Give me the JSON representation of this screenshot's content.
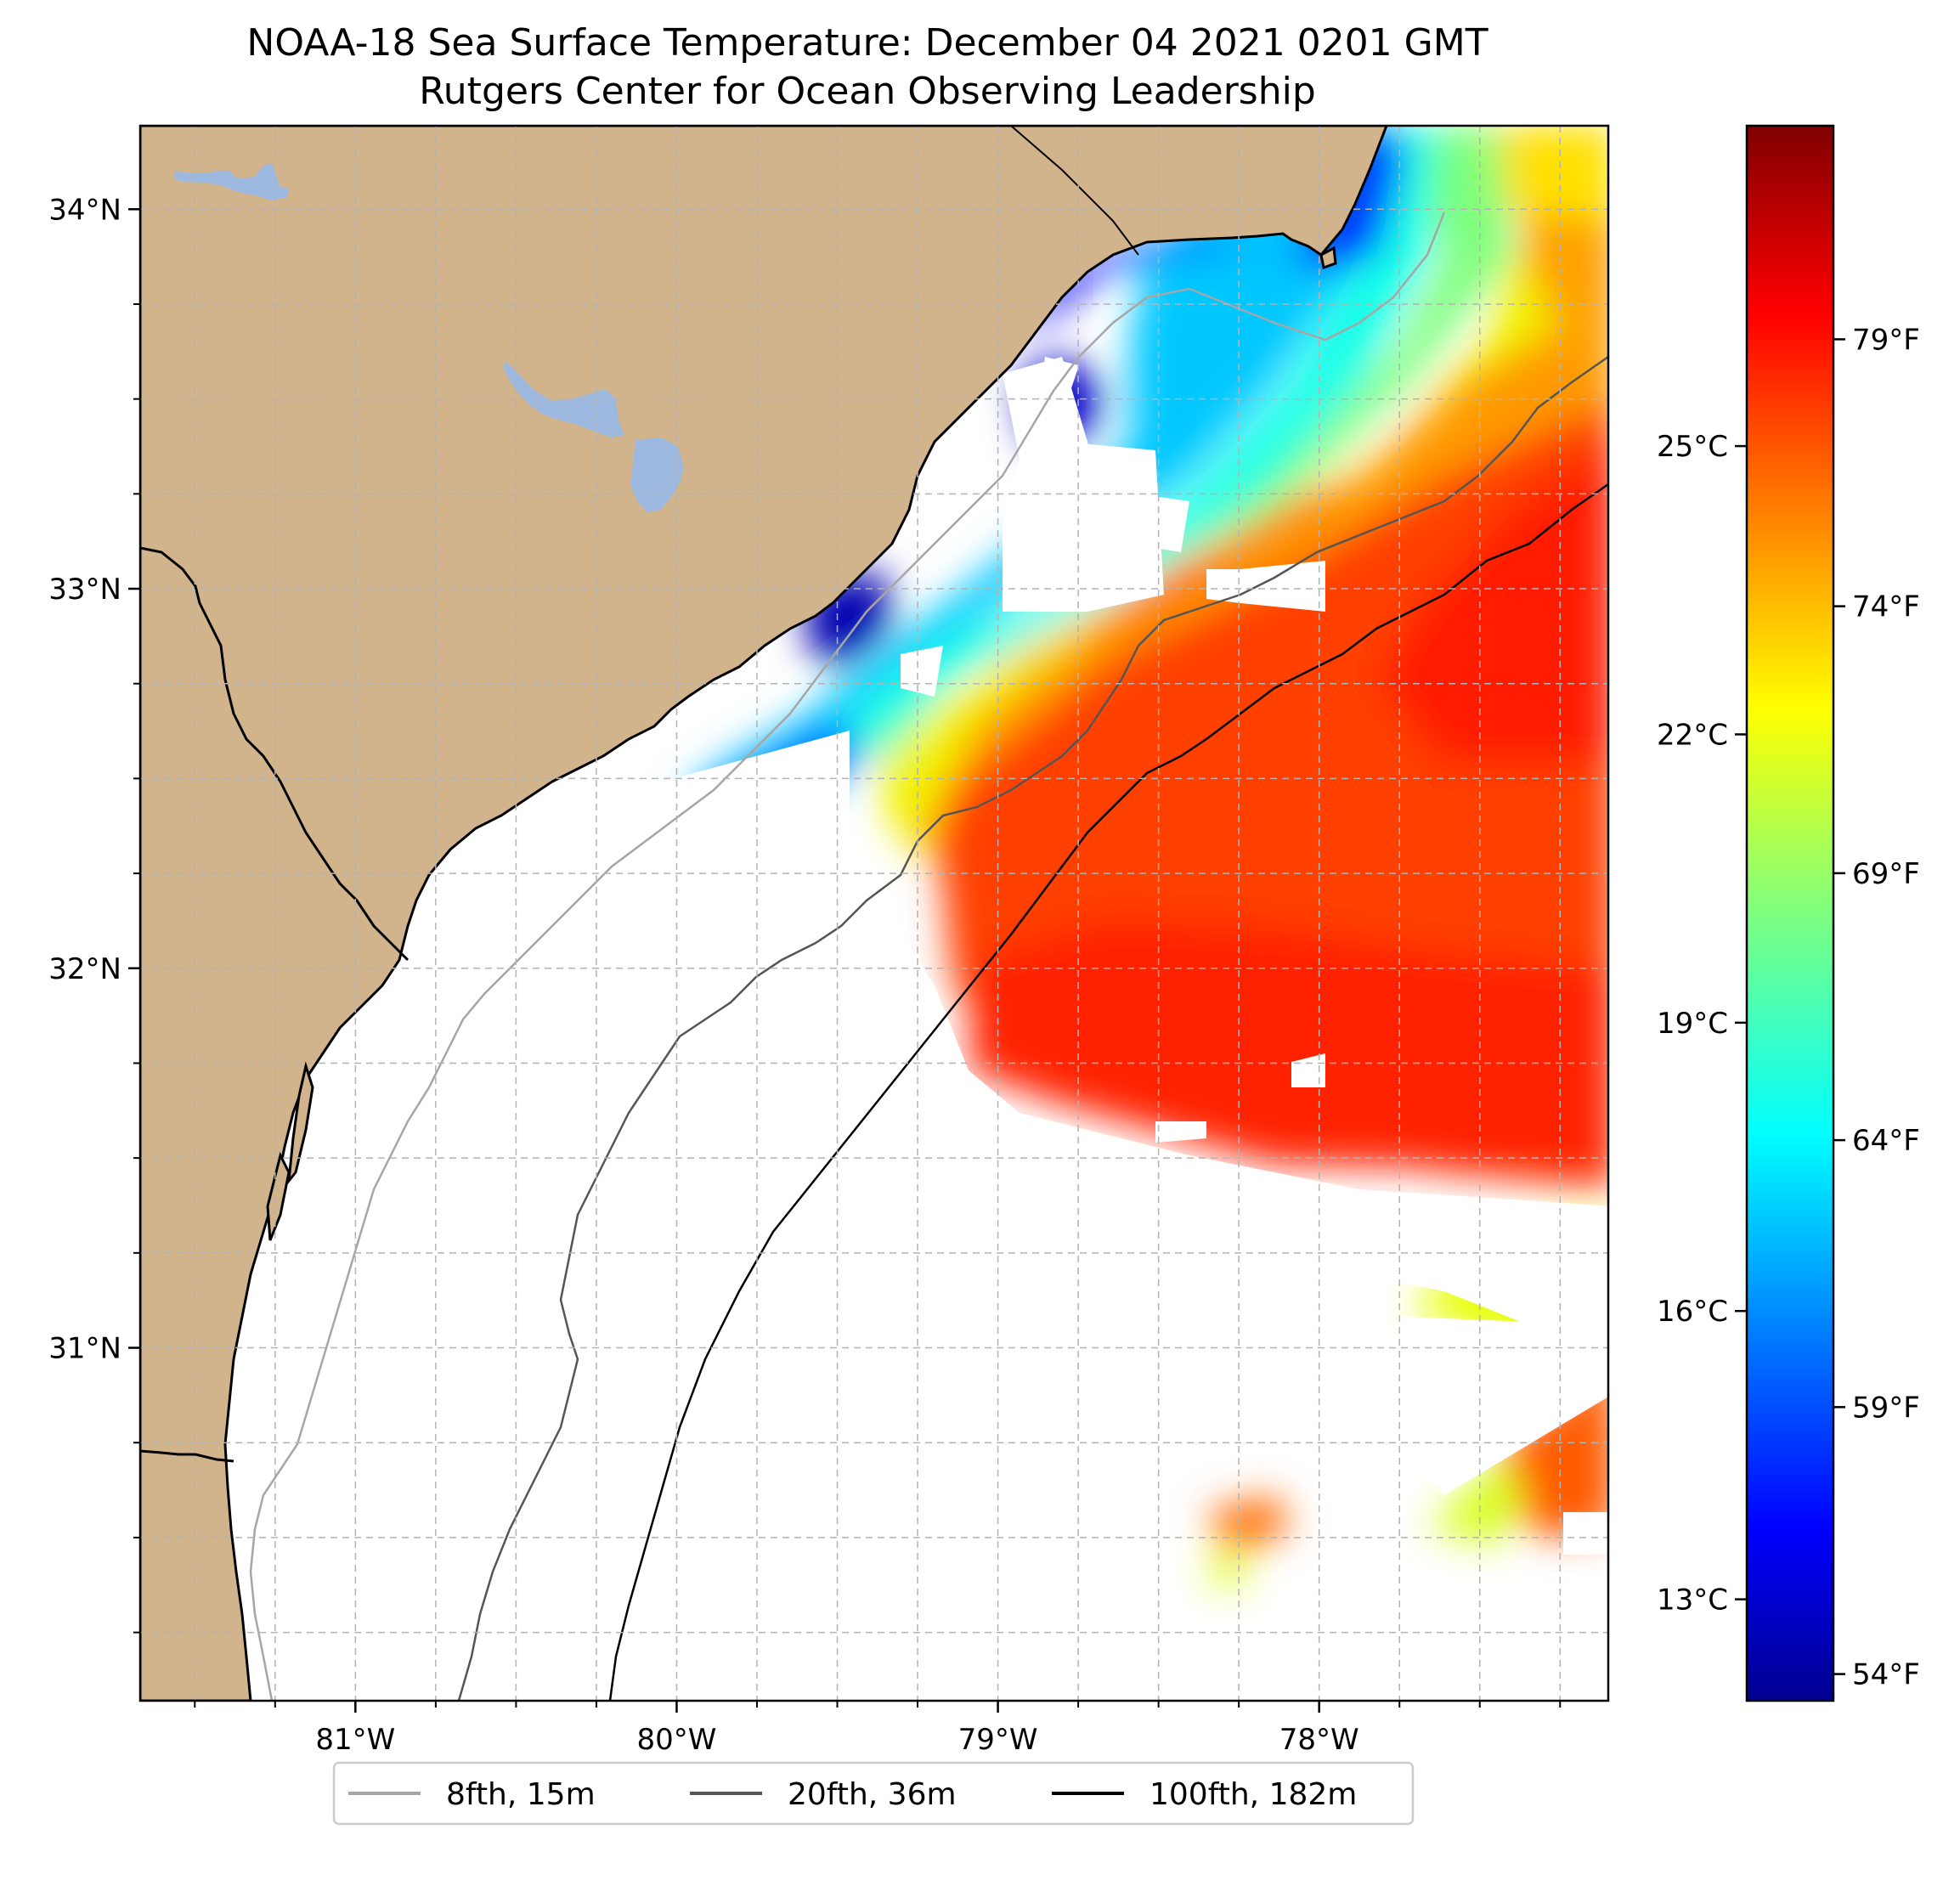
{
  "title_line1": "NOAA-18 Sea Surface Temperature: December 04 2021 0201 GMT",
  "title_line2": "Rutgers Center for Ocean Observing Leadership",
  "colors": {
    "land": "#d2b48c",
    "lakes": "#9db9e0",
    "ocean_no_data": "#ffffff",
    "grid": "#b3b3b3",
    "isobath_8fth": "#a6a6a6",
    "isobath_20fth": "#555555",
    "isobath_100fth": "#000000",
    "coastline": "#000000"
  },
  "map": {
    "lon_range": [
      -81.67,
      -77.1
    ],
    "lat_range": [
      30.07,
      34.22
    ],
    "lon_ticks": [
      {
        "value": -81,
        "label": "81°W"
      },
      {
        "value": -80,
        "label": "80°W"
      },
      {
        "value": -79,
        "label": "79°W"
      },
      {
        "value": -78,
        "label": "78°W"
      }
    ],
    "lat_ticks": [
      {
        "value": 34,
        "label": "34°N"
      },
      {
        "value": 33,
        "label": "33°N"
      },
      {
        "value": 32,
        "label": "32°N"
      },
      {
        "value": 31,
        "label": "31°N"
      }
    ],
    "minor_grid_step_deg": 0.25
  },
  "colorbar": {
    "colormap": "jet",
    "range_f": [
      53.5,
      83
    ],
    "celsius_ticks": [
      {
        "value_c": 25,
        "label": "25°C"
      },
      {
        "value_c": 22,
        "label": "22°C"
      },
      {
        "value_c": 19,
        "label": "19°C"
      },
      {
        "value_c": 16,
        "label": "16°C"
      },
      {
        "value_c": 13,
        "label": "13°C"
      }
    ],
    "fahrenheit_ticks": [
      {
        "value_f": 79,
        "label": "79°F"
      },
      {
        "value_f": 74,
        "label": "74°F"
      },
      {
        "value_f": 69,
        "label": "69°F"
      },
      {
        "value_f": 64,
        "label": "64°F"
      },
      {
        "value_f": 59,
        "label": "59°F"
      },
      {
        "value_f": 54,
        "label": "54°F"
      }
    ]
  },
  "legend": {
    "placement": "below-map",
    "entries": [
      {
        "label": "8fth, 15m",
        "color": "#a6a6a6"
      },
      {
        "label": "20fth, 36m",
        "color": "#555555"
      },
      {
        "label": "100fth, 182m",
        "color": "#000000"
      }
    ]
  },
  "chart_data": {
    "type": "heatmap",
    "variable": "Sea Surface Temperature",
    "units": "°F / °C",
    "temperature_range_f": [
      54,
      82
    ],
    "warmest_region": "east, Gulf Stream (~79-81°F)",
    "coldest_region": "nearshore north (~54-57°F)"
  }
}
